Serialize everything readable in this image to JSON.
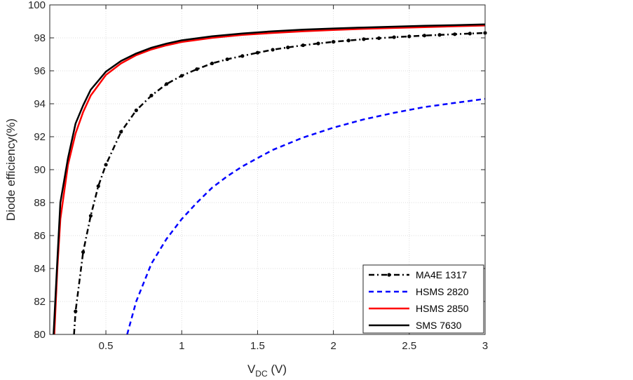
{
  "chart_data": {
    "type": "line",
    "title": "",
    "xlabel": "V",
    "xlabel_sub": "DC",
    "xlabel_unit": " (V)",
    "ylabel": "Diode efficiency(%)",
    "xlim": [
      0.13,
      3
    ],
    "ylim": [
      80,
      100
    ],
    "xticks": [
      0.5,
      1,
      1.5,
      2,
      2.5,
      3
    ],
    "xtick_labels": [
      "0.5",
      "1",
      "1.5",
      "2",
      "2.5",
      "3"
    ],
    "yticks": [
      80,
      82,
      84,
      86,
      88,
      90,
      92,
      94,
      96,
      98,
      100
    ],
    "ytick_labels": [
      "80",
      "82",
      "84",
      "86",
      "88",
      "90",
      "92",
      "94",
      "96",
      "98",
      "100"
    ],
    "grid": true,
    "legend_position": "bottom-right",
    "series": [
      {
        "name": "MA4E 1317",
        "color": "#000000",
        "style": "dash-dot-marker",
        "x": [
          0.29,
          0.3,
          0.35,
          0.4,
          0.45,
          0.5,
          0.6,
          0.7,
          0.8,
          0.9,
          1.0,
          1.1,
          1.2,
          1.3,
          1.4,
          1.5,
          1.6,
          1.7,
          1.8,
          1.9,
          2.0,
          2.1,
          2.2,
          2.3,
          2.4,
          2.5,
          2.6,
          2.7,
          2.8,
          2.9,
          3.0
        ],
        "y": [
          80.0,
          81.4,
          85.0,
          87.2,
          89.0,
          90.3,
          92.3,
          93.6,
          94.5,
          95.2,
          95.7,
          96.1,
          96.45,
          96.7,
          96.9,
          97.1,
          97.28,
          97.42,
          97.55,
          97.66,
          97.76,
          97.84,
          97.92,
          97.98,
          98.04,
          98.09,
          98.14,
          98.18,
          98.22,
          98.26,
          98.3
        ]
      },
      {
        "name": "HSMS 2820",
        "color": "#0000ff",
        "style": "dashed",
        "x": [
          0.64,
          0.7,
          0.8,
          0.9,
          1.0,
          1.1,
          1.2,
          1.3,
          1.4,
          1.5,
          1.6,
          1.8,
          2.0,
          2.2,
          2.4,
          2.6,
          2.8,
          3.0
        ],
        "y": [
          80.0,
          82.0,
          84.3,
          85.8,
          87.0,
          88.0,
          88.9,
          89.6,
          90.2,
          90.7,
          91.2,
          91.95,
          92.55,
          93.05,
          93.45,
          93.8,
          94.05,
          94.3
        ]
      },
      {
        "name": "HSMS 2850",
        "color": "#ff0000",
        "style": "solid",
        "x": [
          0.16,
          0.18,
          0.2,
          0.25,
          0.3,
          0.35,
          0.4,
          0.5,
          0.6,
          0.7,
          0.8,
          0.9,
          1.0,
          1.2,
          1.4,
          1.6,
          1.8,
          2.0,
          2.2,
          2.4,
          2.6,
          2.8,
          3.0
        ],
        "y": [
          80.0,
          84.0,
          87.0,
          90.3,
          92.2,
          93.5,
          94.5,
          95.75,
          96.45,
          96.95,
          97.3,
          97.55,
          97.75,
          98.0,
          98.18,
          98.3,
          98.4,
          98.48,
          98.55,
          98.6,
          98.65,
          98.7,
          98.75
        ]
      },
      {
        "name": "SMS 7630",
        "color": "#000000",
        "style": "solid",
        "x": [
          0.155,
          0.18,
          0.2,
          0.25,
          0.3,
          0.35,
          0.4,
          0.5,
          0.6,
          0.7,
          0.8,
          0.9,
          1.0,
          1.2,
          1.4,
          1.6,
          1.8,
          2.0,
          2.2,
          2.4,
          2.6,
          2.8,
          3.0
        ],
        "y": [
          80.0,
          84.5,
          88.0,
          90.7,
          92.8,
          93.9,
          94.85,
          95.95,
          96.6,
          97.05,
          97.4,
          97.65,
          97.85,
          98.1,
          98.27,
          98.4,
          98.5,
          98.57,
          98.63,
          98.68,
          98.73,
          98.77,
          98.82
        ]
      }
    ]
  }
}
